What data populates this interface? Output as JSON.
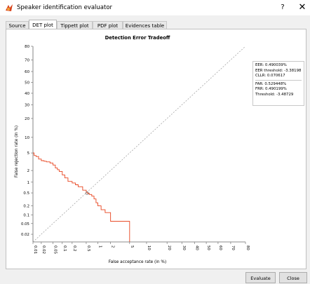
{
  "window": {
    "title": "Speaker identification evaluator",
    "help": "?",
    "close": "✕"
  },
  "tabs": [
    {
      "label": "Source",
      "active": false
    },
    {
      "label": "DET plot",
      "active": true
    },
    {
      "label": "Tippett plot",
      "active": false
    },
    {
      "label": "PDF plot",
      "active": false
    },
    {
      "label": "Evidences table",
      "active": false
    }
  ],
  "stats": {
    "eer": "EER: 0.490039%",
    "eer_threshold": "EER threshold: -3.38198",
    "cllr": "CLLR: 0.070617",
    "far": "FAR: 0.529448%",
    "frr": "FRR: 0.490199%",
    "threshold": "Threshold: -3.48729"
  },
  "buttons": {
    "evaluate": "Evaluate",
    "close": "Close"
  },
  "colors": {
    "curve": "#e8431e",
    "diagonal": "#9a9a9a",
    "accent": "#0078d7"
  },
  "chart_data": {
    "type": "line",
    "title": "Detection Error Tradeoff",
    "xlabel": "False acceptance rate (in %)",
    "ylabel": "False rejection rate (in %)",
    "scale": "normal-deviate (probit)",
    "x_ticks": [
      "0.01",
      "0.02",
      "0.05",
      "0.1",
      "0.2",
      "0.5",
      "1",
      "2",
      "5",
      "10",
      "20",
      "30",
      "40",
      "50",
      "60",
      "70",
      "80"
    ],
    "y_ticks": [
      "0.02",
      "0.05",
      "0.1",
      "0.2",
      "0.5",
      "1",
      "2",
      "5",
      "10",
      "20",
      "30",
      "40",
      "50",
      "60",
      "70",
      "80"
    ],
    "xlim": [
      0.01,
      80
    ],
    "ylim": [
      0.01,
      80
    ],
    "grid": false,
    "series": [
      {
        "type": "step",
        "x": [
          0.01,
          0.011,
          0.013,
          0.016,
          0.02,
          0.025,
          0.03,
          0.04,
          0.05,
          0.06,
          0.07,
          0.08,
          0.1,
          0.12,
          0.15,
          0.2,
          0.25,
          0.3,
          0.4,
          0.5,
          0.53,
          0.6,
          0.7,
          0.8,
          0.9,
          1,
          1.2,
          1.5,
          2,
          2,
          5,
          5
        ],
        "y": [
          5,
          4.4,
          4.2,
          3.7,
          3.4,
          3.3,
          3.2,
          3.0,
          2.7,
          2.3,
          2.1,
          1.9,
          1.55,
          1.3,
          1.05,
          0.95,
          0.85,
          0.75,
          0.6,
          0.52,
          0.49,
          0.45,
          0.4,
          0.33,
          0.25,
          0.2,
          0.15,
          0.12,
          0.12,
          0.06,
          0.06,
          0.01
        ]
      },
      {
        "type": "diagonal",
        "x": [
          0.01,
          80
        ],
        "y": [
          0.01,
          80
        ]
      }
    ],
    "eer_point": {
      "x": 0.53,
      "y": 0.49
    }
  }
}
